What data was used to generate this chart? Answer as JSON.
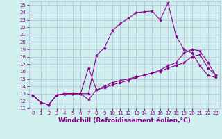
{
  "xlabel": "Windchill (Refroidissement éolien,°C)",
  "background_color": "#d0f0f0",
  "grid_color": "#b8b8d8",
  "line_color": "#880088",
  "xlim": [
    -0.5,
    23.5
  ],
  "ylim": [
    11,
    25.5
  ],
  "yticks": [
    11,
    12,
    13,
    14,
    15,
    16,
    17,
    18,
    19,
    20,
    21,
    22,
    23,
    24,
    25
  ],
  "xticks": [
    0,
    1,
    2,
    3,
    4,
    5,
    6,
    7,
    8,
    9,
    10,
    11,
    12,
    13,
    14,
    15,
    16,
    17,
    18,
    19,
    20,
    21,
    22,
    23
  ],
  "line1_x": [
    0,
    1,
    2,
    3,
    4,
    5,
    6,
    7,
    8,
    9,
    10,
    11,
    12,
    13,
    14,
    15,
    16,
    17,
    18,
    19,
    20,
    21,
    22,
    23
  ],
  "line1_y": [
    12.8,
    11.8,
    11.5,
    12.8,
    13.0,
    13.0,
    13.0,
    13.0,
    18.2,
    19.2,
    21.5,
    22.5,
    23.2,
    24.0,
    24.1,
    24.2,
    23.0,
    25.3,
    20.8,
    19.0,
    18.5,
    16.8,
    15.5,
    15.2
  ],
  "line2_x": [
    0,
    1,
    2,
    3,
    4,
    5,
    6,
    7,
    8,
    9,
    10,
    11,
    12,
    13,
    14,
    15,
    16,
    17,
    18,
    19,
    20,
    21,
    22,
    23
  ],
  "line2_y": [
    12.8,
    11.8,
    11.5,
    12.8,
    13.0,
    13.0,
    13.0,
    16.5,
    13.5,
    13.8,
    14.2,
    14.5,
    14.8,
    15.2,
    15.5,
    15.8,
    16.2,
    16.8,
    17.2,
    18.5,
    19.0,
    18.8,
    17.2,
    15.5
  ],
  "line3_x": [
    0,
    1,
    2,
    3,
    4,
    5,
    6,
    7,
    8,
    9,
    10,
    11,
    12,
    13,
    14,
    15,
    16,
    17,
    18,
    19,
    20,
    21,
    22,
    23
  ],
  "line3_y": [
    12.8,
    11.8,
    11.5,
    12.8,
    13.0,
    13.0,
    13.0,
    12.2,
    13.5,
    14.0,
    14.5,
    14.8,
    15.0,
    15.3,
    15.5,
    15.8,
    16.0,
    16.5,
    16.8,
    17.2,
    18.0,
    18.3,
    16.5,
    15.5
  ],
  "marker": "*",
  "markersize": 3,
  "linewidth": 0.8,
  "tick_fontsize": 5,
  "label_fontsize": 6.5
}
